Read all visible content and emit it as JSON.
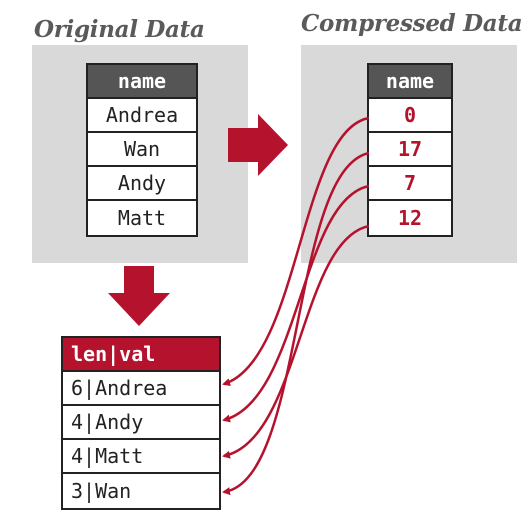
{
  "original": {
    "title": "Original Data",
    "header": "name",
    "rows": [
      "Andrea",
      "Wan",
      "Andy",
      "Matt"
    ]
  },
  "compressed": {
    "title": "Compressed Data",
    "header": "name",
    "codes": [
      "0",
      "17",
      "7",
      "12"
    ]
  },
  "dictionary": {
    "header": "len|val",
    "rows": [
      "6|Andrea",
      "4|Andy",
      "4|Matt",
      "3|Wan"
    ]
  },
  "colors": {
    "accent": "#b5122e",
    "panel": "#d9d9d9",
    "header_dark": "#555555",
    "title": "#5a5a5a"
  }
}
